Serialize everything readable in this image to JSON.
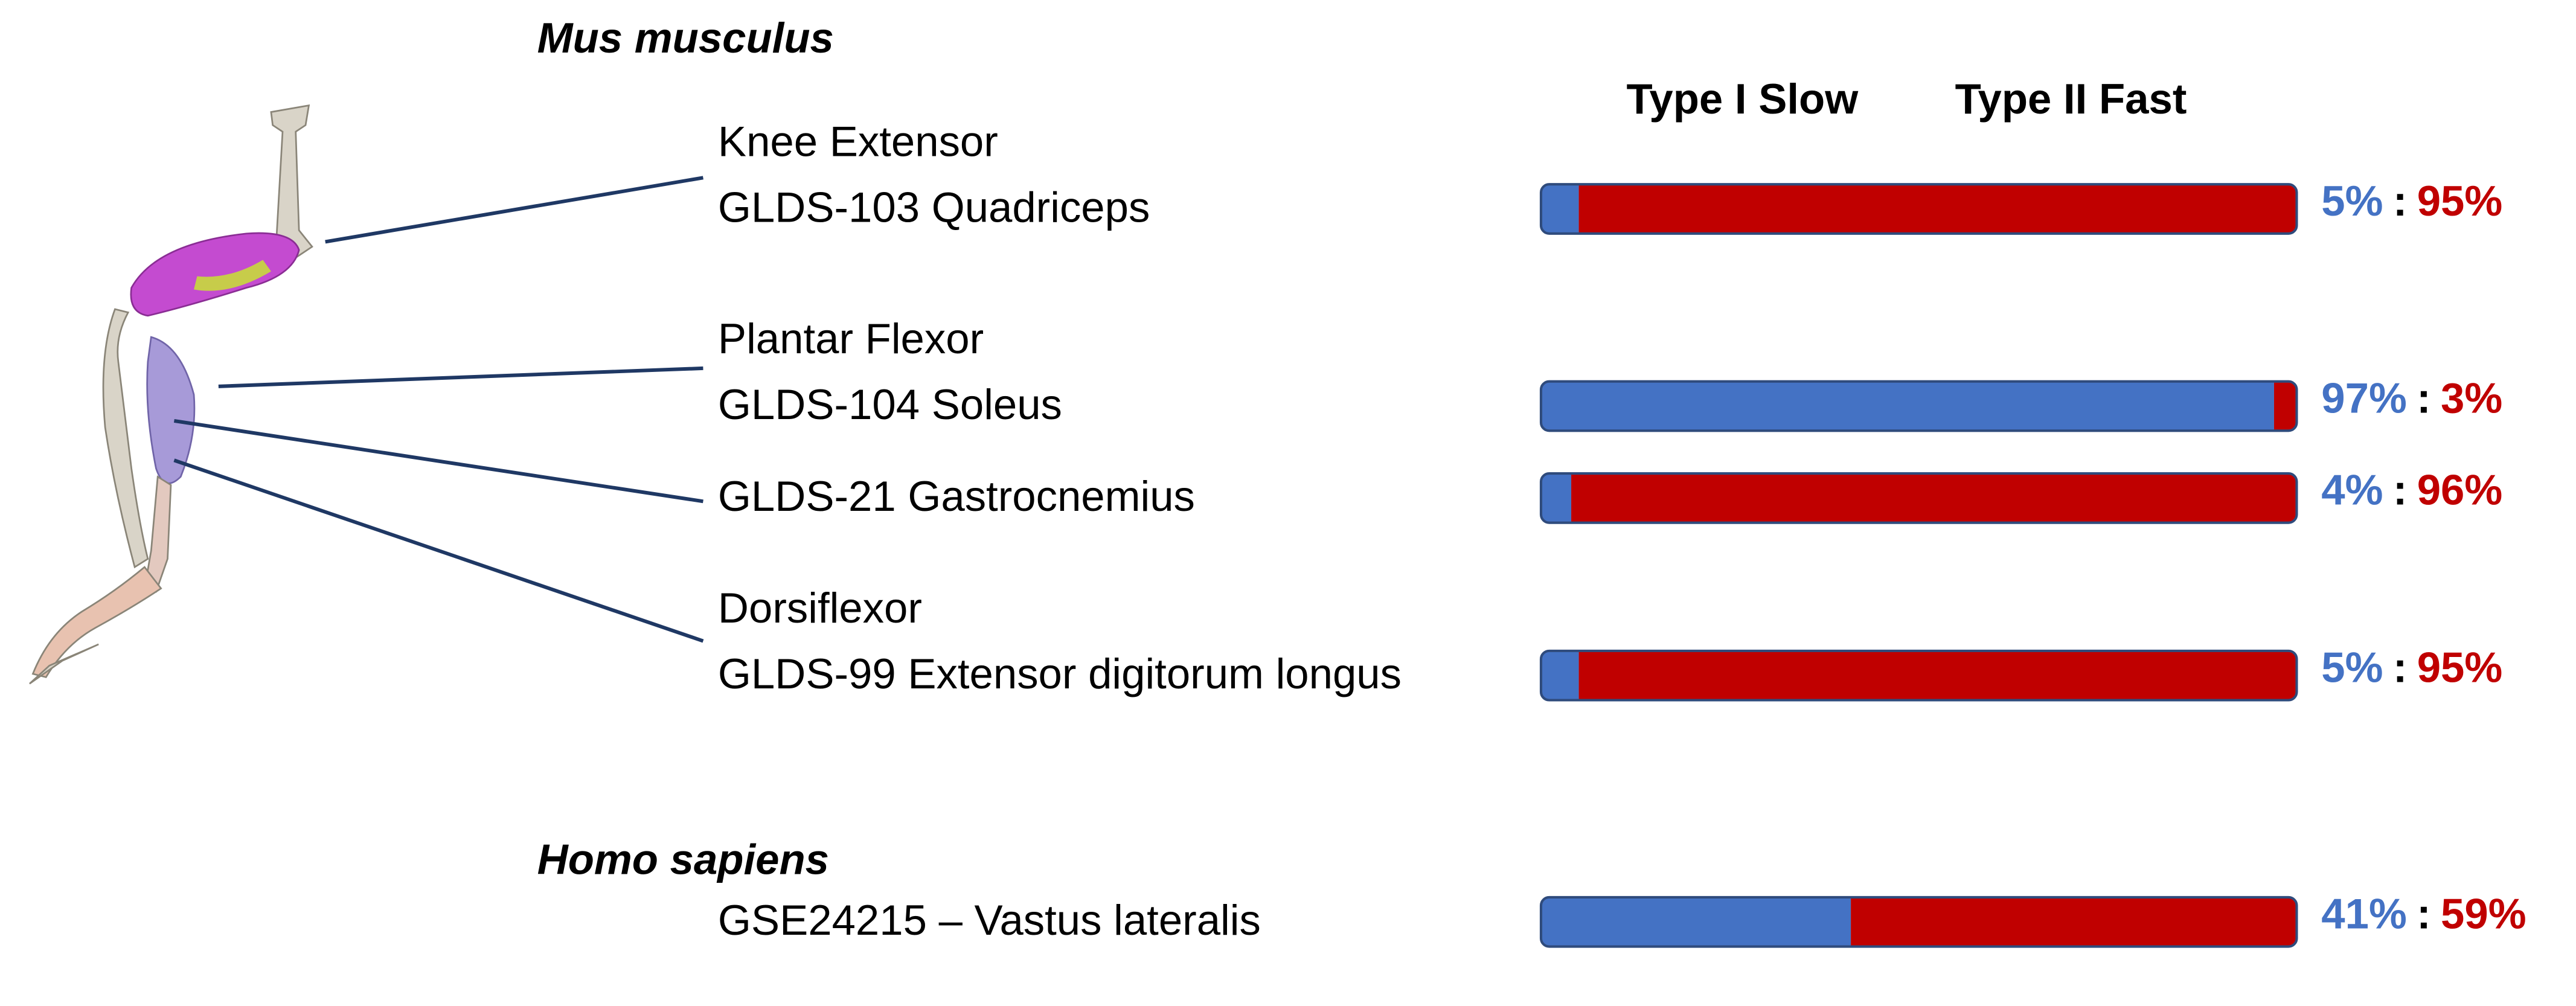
{
  "chart_data": {
    "type": "stacked_bar_h",
    "species": [
      "Mus musculus",
      "Homo sapiens"
    ],
    "groups": [
      "Knee Extensor",
      "Plantar Flexor",
      null,
      "Dorsiflexor",
      null
    ],
    "categories": [
      "GLDS-103 Quadriceps",
      "GLDS-104 Soleus",
      "GLDS-21 Gastrocnemius",
      "GLDS-99 Extensor digitorum longus",
      "GSE24215 – Vastus lateralis"
    ],
    "series": [
      {
        "name": "Type I Slow",
        "color": "#4472c4",
        "values": [
          5,
          97,
          4,
          5,
          41
        ],
        "value_labels": [
          "5%",
          "97%",
          "4%",
          "5%",
          "41%"
        ]
      },
      {
        "name": "Type II Fast",
        "color": "#c00000",
        "values": [
          95,
          3,
          96,
          95,
          59
        ],
        "value_labels": [
          "95%",
          "3%",
          "96%",
          "95%",
          "59%"
        ]
      }
    ],
    "separator": ":",
    "xlim": [
      0,
      100
    ]
  }
}
